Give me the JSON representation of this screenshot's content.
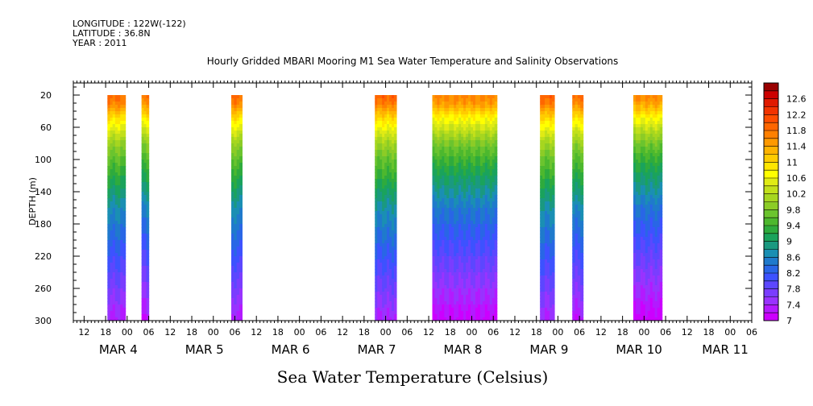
{
  "header": {
    "longitude": "LONGITUDE : 122W(-122)",
    "latitude": "LATITUDE : 36.8N",
    "year": "YEAR : 2011"
  },
  "chart_data": {
    "type": "heatmap",
    "title": "Hourly Gridded MBARI Mooring M1 Sea Water Temperature and Salinity Observations",
    "xlabel": "",
    "ylabel": "DEPTH (m)",
    "colorbar_title": "Sea Water Temperature (Celsius)",
    "x_unit": "hours since 2011-03-03 00:00",
    "xlim": [
      9,
      198
    ],
    "ylim": [
      300,
      5
    ],
    "y_ticks": [
      20,
      60,
      100,
      140,
      180,
      220,
      260,
      300
    ],
    "x_hour_ticks": [
      {
        "t": 12,
        "label": "12"
      },
      {
        "t": 18,
        "label": "18"
      },
      {
        "t": 24,
        "label": "00"
      },
      {
        "t": 30,
        "label": "06"
      },
      {
        "t": 36,
        "label": "12"
      },
      {
        "t": 42,
        "label": "18"
      },
      {
        "t": 48,
        "label": "00"
      },
      {
        "t": 54,
        "label": "06"
      },
      {
        "t": 60,
        "label": "12"
      },
      {
        "t": 66,
        "label": "18"
      },
      {
        "t": 72,
        "label": "00"
      },
      {
        "t": 78,
        "label": "06"
      },
      {
        "t": 84,
        "label": "12"
      },
      {
        "t": 90,
        "label": "18"
      },
      {
        "t": 96,
        "label": "00"
      },
      {
        "t": 102,
        "label": "06"
      },
      {
        "t": 108,
        "label": "12"
      },
      {
        "t": 114,
        "label": "18"
      },
      {
        "t": 120,
        "label": "00"
      },
      {
        "t": 126,
        "label": "06"
      },
      {
        "t": 132,
        "label": "12"
      },
      {
        "t": 138,
        "label": "18"
      },
      {
        "t": 144,
        "label": "00"
      },
      {
        "t": 150,
        "label": "06"
      },
      {
        "t": 156,
        "label": "12"
      },
      {
        "t": 162,
        "label": "18"
      },
      {
        "t": 168,
        "label": "00"
      },
      {
        "t": 174,
        "label": "06"
      },
      {
        "t": 180,
        "label": "12"
      },
      {
        "t": 186,
        "label": "18"
      },
      {
        "t": 192,
        "label": "00"
      },
      {
        "t": 198,
        "label": "06"
      }
    ],
    "x_day_labels": [
      {
        "t": 24,
        "label": "MAR  4"
      },
      {
        "t": 48,
        "label": "MAR  5"
      },
      {
        "t": 72,
        "label": "MAR  6"
      },
      {
        "t": 96,
        "label": "MAR  7"
      },
      {
        "t": 120,
        "label": "MAR  8"
      },
      {
        "t": 144,
        "label": "MAR  9"
      },
      {
        "t": 168,
        "label": "MAR 10"
      },
      {
        "t": 192,
        "label": "MAR 11"
      }
    ],
    "colorbar": {
      "levels": [
        7,
        7.2,
        7.4,
        7.6,
        7.8,
        8,
        8.2,
        8.4,
        8.6,
        8.8,
        9,
        9.2,
        9.4,
        9.6,
        9.8,
        10,
        10.2,
        10.4,
        10.6,
        10.8,
        11,
        11.2,
        11.4,
        11.6,
        11.8,
        12,
        12.2,
        12.4,
        12.6,
        12.8
      ],
      "labels": [
        "7",
        "7.4",
        "7.8",
        "8.2",
        "8.6",
        "9",
        "9.4",
        "9.8",
        "10.2",
        "10.6",
        "11",
        "11.4",
        "11.8",
        "12.2",
        "12.6"
      ],
      "colors": [
        "#cc00ff",
        "#b31aff",
        "#9933ff",
        "#7a3dff",
        "#5c47ff",
        "#3d52ff",
        "#2966e6",
        "#1f7acc",
        "#1a8fb3",
        "#1a9980",
        "#1aa35c",
        "#2eab3d",
        "#4db82e",
        "#6bc42e",
        "#8ccc26",
        "#a6d61f",
        "#c2e01a",
        "#e0eb14",
        "#ffff00",
        "#ffe600",
        "#ffcc00",
        "#ffb300",
        "#ff9900",
        "#ff8000",
        "#ff6600",
        "#ff4d00",
        "#f23300",
        "#e01a00",
        "#cc0000",
        "#990000"
      ]
    },
    "depth_profile": {
      "depths": [
        10,
        20,
        30,
        40,
        50,
        60,
        70,
        80,
        90,
        100,
        120,
        140,
        160,
        180,
        200,
        220,
        240,
        260,
        280,
        300
      ],
      "base_temps": [
        11.9,
        11.8,
        11.6,
        11.2,
        10.8,
        10.5,
        10.2,
        9.9,
        9.7,
        9.5,
        9.2,
        8.9,
        8.6,
        8.4,
        8.2,
        8.0,
        7.8,
        7.6,
        7.4,
        7.2
      ]
    },
    "segments": [
      {
        "t0": 18.5,
        "t1": 23.5,
        "offset": 0.1
      },
      {
        "t0": 28.0,
        "t1": 30.0,
        "offset": 0.0
      },
      {
        "t0": 53.0,
        "t1": 56.0,
        "offset": 0.1
      },
      {
        "t0": 93.0,
        "t1": 99.0,
        "offset": 0.15
      },
      {
        "t0": 109.0,
        "t1": 127.0,
        "offset": -0.1
      },
      {
        "t0": 139.0,
        "t1": 143.0,
        "offset": 0.15
      },
      {
        "t0": 148.0,
        "t1": 151.0,
        "offset": 0.05
      },
      {
        "t0": 165.0,
        "t1": 173.0,
        "offset": -0.15
      }
    ]
  }
}
